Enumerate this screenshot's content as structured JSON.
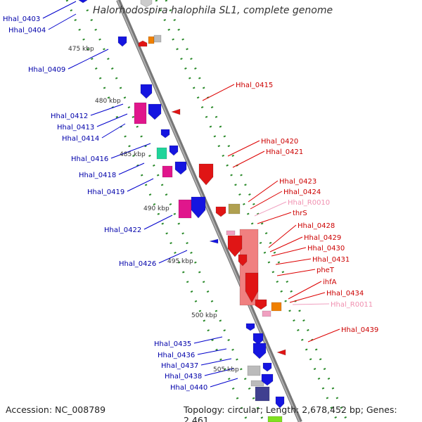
{
  "title": "Halorhodospira halophila SL1, complete genome",
  "accession": "Accession: NC_008789",
  "topology": "Topology: circular; Length: 2,678,452 bp; Genes: 2,461",
  "colors": {
    "backbone": "#8f8f8f",
    "tick": "#2a8a2a",
    "blue_gene": "#1515e0",
    "red_gene": "#e01515",
    "pink_label": "#f090b0",
    "blue_label": "#0000aa",
    "red_label": "#cc0000"
  },
  "kbp_labels": [
    "475 kbp",
    "480 kbp",
    "485 kbp",
    "490 kbp",
    "495 kbp",
    "500 kbp",
    "505 kbp"
  ],
  "left_labels": [
    "Hhal_0403",
    "Hhal_0404",
    "Hhal_0409",
    "Hhal_0412",
    "Hhal_0413",
    "Hhal_0414",
    "Hhal_0416",
    "Hhal_0418",
    "Hhal_0419",
    "Hhal_0422",
    "Hhal_0426",
    "Hhal_0435",
    "Hhal_0436",
    "Hhal_0437",
    "Hhal_0438",
    "Hhal_0440"
  ],
  "right_labels": [
    "Hhal_0415",
    "Hhal_0420",
    "Hhal_0421",
    "Hhal_0423",
    "Hhal_0424",
    "Hhal_R0010",
    "thrS",
    "Hhal_0428",
    "Hhal_0429",
    "Hhal_0430",
    "Hhal_0431",
    "pheT",
    "ihfA",
    "Hhal_0434",
    "Hhal_R0011",
    "Hhal_0439"
  ]
}
